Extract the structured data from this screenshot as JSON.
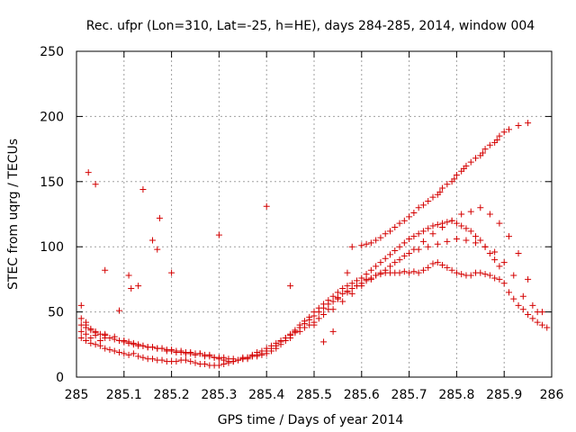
{
  "chart_data": {
    "type": "scatter",
    "title": "Rec. ufpr (Lon=310, Lat=-25, h=HE), days 284-285, 2014, window 004",
    "xlabel": "GPS time / Days of year 2014",
    "ylabel": "STEC from uqrg / TECUs",
    "xlim": [
      285,
      286
    ],
    "ylim": [
      0,
      250
    ],
    "xticks": [
      285,
      285.1,
      285.2,
      285.3,
      285.4,
      285.5,
      285.6,
      285.7,
      285.8,
      285.9,
      286
    ],
    "xtick_labels": [
      "285",
      "285.1",
      "285.2",
      "285.3",
      "285.4",
      "285.5",
      "285.6",
      "285.7",
      "285.8",
      "285.9",
      "286"
    ],
    "yticks": [
      0,
      50,
      100,
      150,
      200,
      250
    ],
    "ytick_labels": [
      "0",
      "50",
      "100",
      "150",
      "200",
      "250"
    ],
    "grid": true,
    "marker": "+",
    "color": "#d40000",
    "series": [
      {
        "name": "STEC",
        "x": [
          285.01,
          285.01,
          285.01,
          285.02,
          285.02,
          285.03,
          285.03,
          285.04,
          285.05,
          285.05,
          285.06,
          285.07,
          285.08,
          285.09,
          285.1,
          285.11,
          285.12,
          285.13,
          285.14,
          285.15,
          285.16,
          285.17,
          285.18,
          285.19,
          285.2,
          285.21,
          285.22,
          285.23,
          285.24,
          285.25,
          285.26,
          285.27,
          285.28,
          285.29,
          285.3,
          285.31,
          285.32,
          285.33,
          285.34,
          285.35,
          285.36,
          285.37,
          285.38,
          285.39,
          285.4,
          285.41,
          285.42,
          285.43,
          285.44,
          285.45,
          285.46,
          285.47,
          285.48,
          285.49,
          285.5,
          285.51,
          285.52,
          285.53,
          285.54,
          285.55,
          285.56,
          285.57,
          285.58,
          285.59,
          285.6,
          285.61,
          285.62,
          285.63,
          285.64,
          285.65,
          285.66,
          285.67,
          285.68,
          285.69,
          285.7,
          285.71,
          285.72,
          285.73,
          285.74,
          285.75,
          285.76,
          285.77,
          285.78,
          285.79,
          285.8,
          285.81,
          285.82,
          285.83,
          285.84,
          285.85,
          285.86,
          285.87,
          285.88,
          285.89,
          285.9,
          285.91,
          285.92,
          285.93,
          285.94,
          285.95,
          285.96,
          285.97,
          285.98,
          285.99,
          285.01,
          285.02,
          285.03,
          285.04,
          285.05,
          285.06,
          285.07,
          285.08,
          285.09,
          285.1,
          285.11,
          285.12,
          285.13,
          285.14,
          285.15,
          285.16,
          285.17,
          285.18,
          285.19,
          285.2,
          285.21,
          285.22,
          285.23,
          285.24,
          285.25,
          285.26,
          285.27,
          285.28,
          285.29,
          285.3,
          285.31,
          285.32,
          285.33,
          285.34,
          285.35,
          285.36,
          285.37,
          285.38,
          285.39,
          285.4,
          285.41,
          285.42,
          285.43,
          285.44,
          285.45,
          285.46,
          285.47,
          285.48,
          285.49,
          285.5,
          285.51,
          285.52,
          285.53,
          285.54,
          285.55,
          285.56,
          285.57,
          285.58,
          285.59,
          285.6,
          285.61,
          285.62,
          285.63,
          285.64,
          285.65,
          285.66,
          285.67,
          285.68,
          285.69,
          285.7,
          285.71,
          285.72,
          285.73,
          285.74,
          285.75,
          285.76,
          285.77,
          285.78,
          285.79,
          285.8,
          285.81,
          285.82,
          285.83,
          285.84,
          285.85,
          285.86,
          285.87,
          285.88,
          285.89,
          285.01,
          285.02,
          285.03,
          285.04,
          285.06,
          285.08,
          285.1,
          285.12,
          285.14,
          285.16,
          285.18,
          285.2,
          285.22,
          285.24,
          285.26,
          285.28,
          285.3,
          285.32,
          285.34,
          285.36,
          285.38,
          285.4,
          285.42,
          285.44,
          285.46,
          285.48,
          285.5,
          285.52,
          285.54,
          285.56,
          285.58,
          285.6,
          285.62,
          285.64,
          285.66,
          285.68,
          285.7,
          285.72,
          285.74,
          285.76,
          285.78,
          285.8,
          285.82,
          285.84,
          285.86,
          285.88,
          285.9,
          285.92,
          285.94,
          285.96,
          285.98,
          285.02,
          285.04,
          285.06,
          285.09,
          285.11,
          285.13,
          285.15,
          285.17,
          285.19,
          285.21,
          285.23,
          285.25,
          285.27,
          285.29,
          285.31,
          285.33,
          285.35,
          285.37,
          285.39,
          285.41,
          285.43,
          285.45,
          285.47,
          285.49,
          285.51,
          285.53,
          285.55,
          285.57,
          285.59,
          285.61,
          285.63,
          285.65,
          285.67,
          285.69,
          285.71,
          285.73,
          285.75,
          285.77,
          285.79,
          285.81,
          285.83,
          285.85,
          285.87,
          285.89,
          285.91,
          285.93,
          285.95,
          285.97,
          285.025,
          285.04,
          285.06,
          285.09,
          285.11,
          285.115,
          285.13,
          285.14,
          285.16,
          285.17,
          285.175,
          285.2,
          285.3,
          285.4,
          285.45,
          285.5,
          285.52,
          285.54,
          285.55,
          285.57,
          285.58,
          285.6,
          285.61,
          285.62,
          285.63,
          285.64,
          285.65,
          285.66,
          285.67,
          285.68,
          285.69,
          285.7,
          285.71,
          285.72,
          285.73,
          285.74,
          285.75,
          285.76,
          285.765,
          285.77,
          285.78,
          285.79,
          285.795,
          285.8,
          285.81,
          285.815,
          285.82,
          285.83,
          285.84,
          285.85,
          285.855,
          285.86,
          285.87,
          285.88,
          285.885,
          285.89,
          285.9,
          285.91,
          285.93,
          285.95
        ],
        "y": [
          30,
          35,
          40,
          28,
          33,
          26,
          30,
          25,
          24,
          28,
          22,
          21,
          20,
          19,
          18,
          17,
          18,
          16,
          15,
          14,
          14,
          13,
          13,
          12,
          12,
          12,
          13,
          13,
          12,
          11,
          10,
          10,
          9,
          9,
          9,
          10,
          11,
          12,
          13,
          14,
          15,
          17,
          19,
          20,
          22,
          24,
          26,
          28,
          30,
          32,
          35,
          38,
          41,
          44,
          47,
          50,
          53,
          56,
          58,
          61,
          64,
          66,
          68,
          70,
          72,
          74,
          76,
          78,
          79,
          80,
          80,
          80,
          80,
          81,
          80,
          81,
          80,
          82,
          84,
          87,
          88,
          86,
          84,
          82,
          80,
          79,
          78,
          78,
          80,
          80,
          79,
          78,
          76,
          75,
          72,
          65,
          60,
          55,
          52,
          48,
          45,
          42,
          40,
          38,
          45,
          40,
          37,
          35,
          33,
          32,
          30,
          29,
          28,
          27,
          26,
          25,
          24,
          24,
          23,
          23,
          22,
          22,
          21,
          21,
          20,
          20,
          19,
          19,
          18,
          18,
          17,
          16,
          15,
          14,
          13,
          12,
          12,
          13,
          14,
          15,
          16,
          17,
          18,
          20,
          22,
          24,
          27,
          30,
          33,
          36,
          40,
          43,
          46,
          50,
          53,
          56,
          59,
          62,
          65,
          68,
          70,
          72,
          74,
          76,
          79,
          82,
          85,
          88,
          91,
          94,
          97,
          100,
          103,
          106,
          108,
          110,
          112,
          114,
          116,
          117,
          118,
          119,
          120,
          118,
          116,
          114,
          112,
          108,
          105,
          100,
          95,
          90,
          85,
          55,
          42,
          36,
          34,
          33,
          31,
          28,
          26,
          24,
          23,
          22,
          20,
          19,
          18,
          18,
          17,
          15,
          14,
          13,
          14,
          16,
          18,
          22,
          28,
          34,
          38,
          42,
          48,
          52,
          58,
          64,
          70,
          75,
          80,
          85,
          90,
          95,
          98,
          100,
          102,
          104,
          106,
          105,
          103,
          100,
          96,
          88,
          78,
          62,
          55,
          50,
          38,
          32,
          30,
          28,
          27,
          25,
          23,
          22,
          20,
          19,
          18,
          17,
          16,
          15,
          15,
          14,
          15,
          16,
          17,
          20,
          25,
          30,
          35,
          40,
          45,
          52,
          60,
          65,
          70,
          75,
          78,
          82,
          88,
          93,
          98,
          104,
          110,
          115,
          120,
          125,
          127,
          130,
          125,
          118,
          108,
          95,
          75,
          50,
          157,
          148,
          82,
          51,
          78,
          68,
          70,
          144,
          105,
          98,
          122,
          80,
          109,
          131,
          70,
          40,
          27,
          35,
          60,
          80,
          100,
          101,
          102,
          103,
          105,
          107,
          110,
          112,
          115,
          118,
          120,
          123,
          126,
          130,
          132,
          135,
          138,
          140,
          142,
          145,
          148,
          150,
          152,
          155,
          158,
          160,
          162,
          165,
          168,
          170,
          172,
          175,
          178,
          180,
          182,
          185,
          188,
          190,
          193,
          195
        ]
      }
    ]
  }
}
